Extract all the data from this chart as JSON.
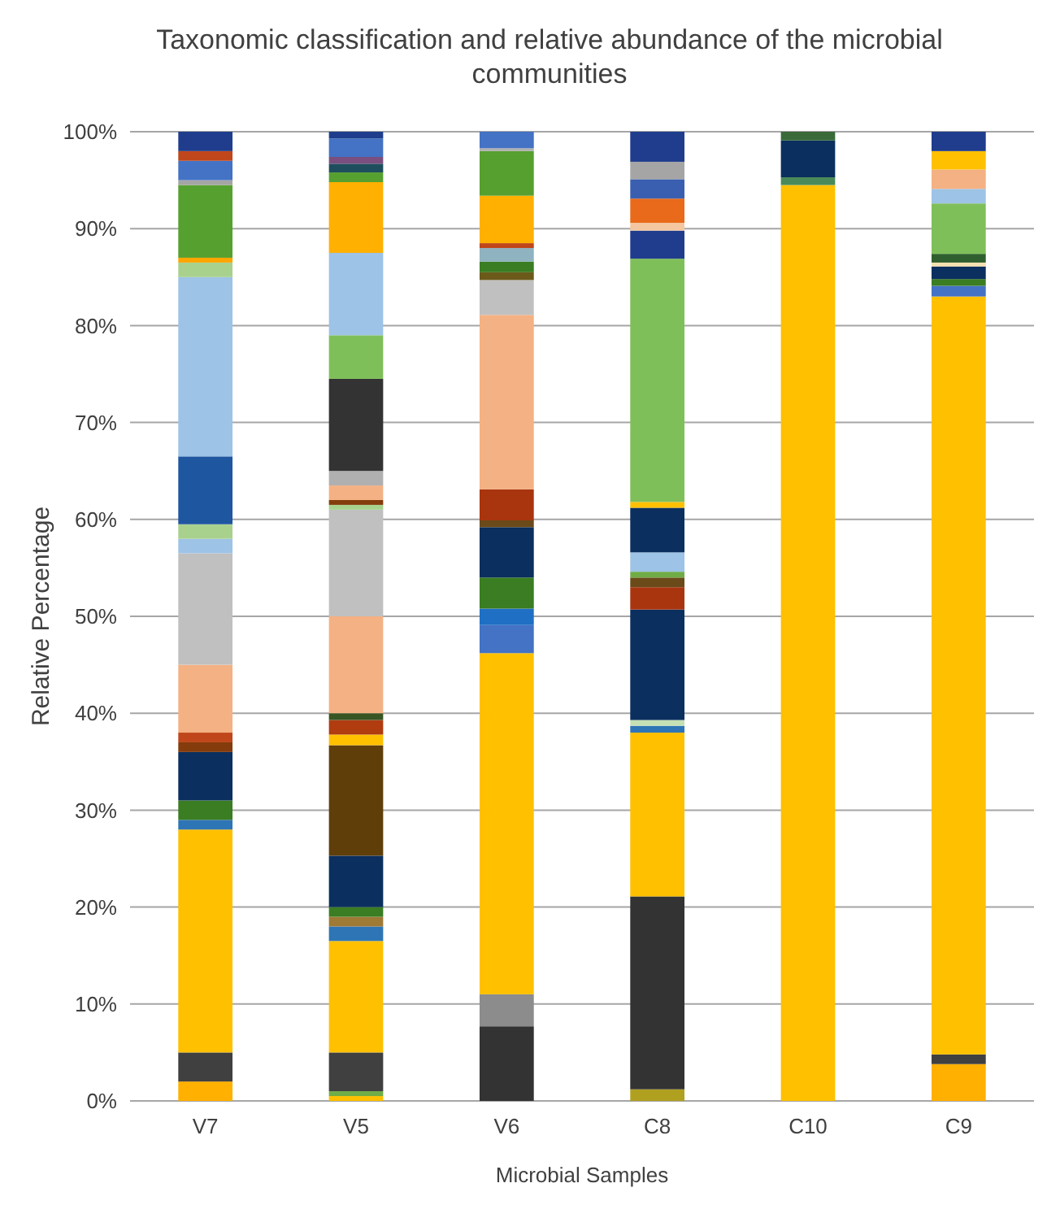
{
  "chart_data": {
    "type": "bar",
    "stacked": true,
    "title": "Taxonomic classification and relative abundance of the microbial communities",
    "xlabel": "Microbial Samples",
    "ylabel": "Relative Percentage",
    "categories": [
      "V7",
      "V5",
      "V6",
      "C8",
      "C10",
      "C9"
    ],
    "ylim": [
      0,
      100
    ],
    "yticks": [
      {
        "value": 0,
        "label": "0%"
      },
      {
        "value": 10,
        "label": "10%"
      },
      {
        "value": 20,
        "label": "20%"
      },
      {
        "value": 30,
        "label": "30%"
      },
      {
        "value": 40,
        "label": "40%"
      },
      {
        "value": 50,
        "label": "50%"
      },
      {
        "value": 60,
        "label": "60%"
      },
      {
        "value": 70,
        "label": "70%"
      },
      {
        "value": 80,
        "label": "80%"
      },
      {
        "value": 90,
        "label": "90%"
      },
      {
        "value": 100,
        "label": "100%"
      }
    ],
    "grid": "y",
    "series": [
      {
        "values": [
          2,
          0.5,
          7.7,
          1.2,
          94.5,
          3.8
        ],
        "colors": [
          "#ffb000",
          "#ffc000",
          "#333333",
          "#b0a020",
          "#ffc000",
          "#ffb000"
        ]
      },
      {
        "values": [
          3,
          0.5,
          3.3,
          19.9,
          0.8,
          1
        ],
        "colors": [
          "#404040",
          "#70ad47",
          "#8c8c8c",
          "#333333",
          "#4a8a5a",
          "#404040"
        ]
      },
      {
        "values": [
          23,
          4,
          35.2,
          16.9,
          3.8,
          78.2
        ],
        "colors": [
          "#ffc000",
          "#404040",
          "#ffc000",
          "#ffc000",
          "#0b2f5e",
          "#ffc000"
        ]
      },
      {
        "values": [
          1,
          11.5,
          2.9,
          0.7,
          0.9,
          1.1
        ],
        "colors": [
          "#2e75b6",
          "#ffc000",
          "#4472c4",
          "#2e75b6",
          "#3a6a3a",
          "#4472c4"
        ]
      },
      {
        "values": [
          2,
          1.5,
          1.7,
          0.6,
          null,
          0.7
        ],
        "colors": [
          "#3a7d22",
          "#2e75b6",
          "#1f6fc5",
          "#c5e0b4",
          null,
          "#3a7d22"
        ]
      },
      {
        "values": [
          5,
          1,
          3.2,
          11.4,
          null,
          1.3
        ],
        "colors": [
          "#0b2f5e",
          "#9e7a35",
          "#3a7d22",
          "#0b2f5e",
          null,
          "#0b2f5e"
        ]
      },
      {
        "values": [
          1,
          1,
          5.2,
          2.3,
          null,
          0.4
        ],
        "colors": [
          "#843c0c",
          "#3a7d22",
          "#0b2f5e",
          "#a9350f",
          null,
          "#f4e0b0"
        ]
      },
      {
        "values": [
          1,
          5.3,
          0.7,
          1,
          null,
          0.9
        ],
        "colors": [
          "#c0461b",
          "#0b2f5e",
          "#6b4a1a",
          "#6b4a1a",
          null,
          "#2f5f2f"
        ]
      },
      {
        "values": [
          7,
          11.4,
          3.2,
          0.6,
          null,
          5.2
        ],
        "colors": [
          "#f4b183",
          "#5f3e0a",
          "#a9350f",
          "#70ad47",
          null,
          "#7fbf5a"
        ]
      },
      {
        "values": [
          11.5,
          1.1,
          18,
          2,
          null,
          1.5
        ],
        "colors": [
          "#c0c0c0",
          "#ffc000",
          "#f4b183",
          "#9dc3e6",
          null,
          "#9dc3e6"
        ]
      },
      {
        "values": [
          1.5,
          1.5,
          3.6,
          4.6,
          null,
          2
        ],
        "colors": [
          "#9dc3e6",
          "#b03c10",
          "#c0c0c0",
          "#0b2f5e",
          null,
          "#f4b183"
        ]
      },
      {
        "values": [
          1.5,
          0.7,
          0.8,
          0.6,
          null,
          1.9
        ],
        "colors": [
          "#a9d18e",
          "#375623",
          "#6b5a1a",
          "#ffc000",
          null,
          "#ffc000"
        ]
      },
      {
        "values": [
          7,
          10,
          1.1,
          25.1,
          null,
          2
        ],
        "colors": [
          "#1f56a0",
          "#f4b183",
          "#3a7d22",
          "#7fbf5a",
          null,
          "#1f3d8c"
        ]
      },
      {
        "values": [
          18.5,
          11,
          1.4,
          2.9,
          null,
          null
        ],
        "colors": [
          "#9dc3e6",
          "#c0c0c0",
          "#8fb3c0",
          "#1f3d8c",
          null,
          null
        ]
      },
      {
        "values": [
          1.5,
          0.5,
          0.5,
          0.8,
          null,
          null
        ],
        "colors": [
          "#a9d18e",
          "#a9d18e",
          "#c0461b",
          "#f4c7a0",
          null,
          null
        ]
      },
      {
        "values": [
          0.5,
          0.5,
          4.9,
          2.5,
          null,
          null
        ],
        "colors": [
          "#ffa500",
          "#843c0c",
          "#ffb000",
          "#e86a1a",
          null,
          null
        ]
      },
      {
        "values": [
          7.5,
          1.5,
          4.6,
          2,
          null,
          null
        ],
        "colors": [
          "#56a030",
          "#f4b183",
          "#56a030",
          "#3a5fb0",
          null,
          null
        ]
      },
      {
        "values": [
          0.5,
          1.5,
          0.3,
          1.8,
          null,
          null
        ],
        "colors": [
          "#a5a5a5",
          "#b0b0b0",
          "#b0b0b0",
          "#a5a5a5",
          null,
          null
        ]
      },
      {
        "values": [
          2,
          9.5,
          1.7,
          3.1,
          null,
          null
        ],
        "colors": [
          "#4472c4",
          "#333333",
          "#4472c4",
          "#1f3d8c",
          null,
          null
        ]
      },
      {
        "values": [
          1,
          4.5,
          null,
          null,
          null,
          null
        ],
        "colors": [
          "#c0461b",
          "#7fbf5a",
          null,
          null,
          null,
          null
        ]
      },
      {
        "values": [
          2,
          8.5,
          null,
          null,
          null,
          null
        ],
        "colors": [
          "#1f3d8c",
          "#9dc3e6",
          null,
          null,
          null,
          null
        ]
      },
      {
        "values": [
          null,
          7.3,
          null,
          null,
          null,
          null
        ],
        "colors": [
          null,
          "#ffb000",
          null,
          null,
          null,
          null
        ]
      },
      {
        "values": [
          null,
          1,
          null,
          null,
          null,
          null
        ],
        "colors": [
          null,
          "#56a030",
          null,
          null,
          null,
          null
        ]
      },
      {
        "values": [
          null,
          0.9,
          null,
          null,
          null,
          null
        ],
        "colors": [
          null,
          "#1e4e5e",
          null,
          null,
          null,
          null
        ]
      },
      {
        "values": [
          null,
          0.7,
          null,
          null,
          null,
          null
        ],
        "colors": [
          null,
          "#7a4f7f",
          null,
          null,
          null,
          null
        ]
      },
      {
        "values": [
          null,
          1.9,
          null,
          null,
          null,
          null
        ],
        "colors": [
          null,
          "#4472c4",
          null,
          null,
          null,
          null
        ]
      },
      {
        "values": [
          null,
          0.7,
          null,
          null,
          null,
          null
        ],
        "colors": [
          null,
          "#1f3d8c",
          null,
          null,
          null,
          null
        ]
      }
    ]
  }
}
